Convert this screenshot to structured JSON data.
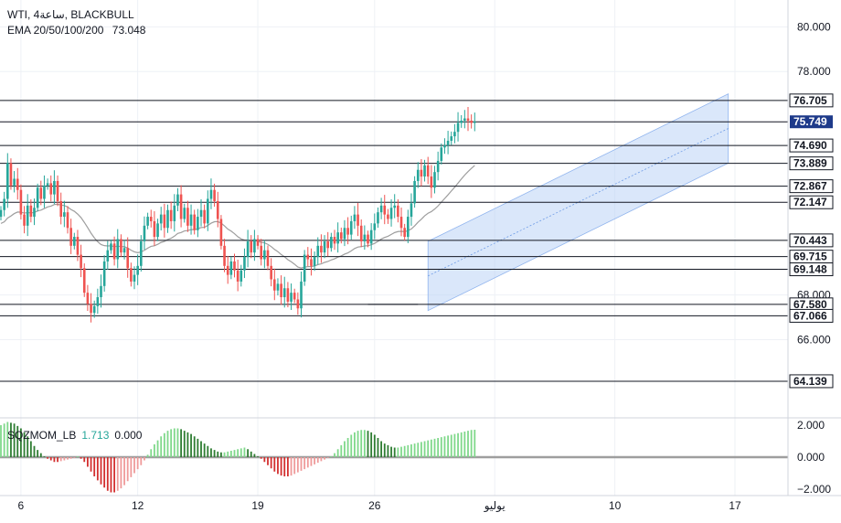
{
  "header": {
    "symbol": "WTI, 4ساعة, BLACKBULL",
    "ema_label": "EMA 20/50/100/200",
    "ema_value": "73.048"
  },
  "oscillator": {
    "label": "SQZMOM_LB",
    "value1": "1.713",
    "value2": "0.000",
    "ticks": [
      {
        "value": 2,
        "label": "2.000"
      },
      {
        "value": 0,
        "label": "0.000"
      },
      {
        "value": -2,
        "label": "−2.000"
      }
    ]
  },
  "colors": {
    "bull": "#26a69a",
    "bear": "#ef5350",
    "channel": "#bbd3f5",
    "ema": "#9e9e9e",
    "current_price_bg": "#1e3a8a",
    "grid": "#eef1f6"
  },
  "chart_data": {
    "type": "candlestick",
    "ylim": [
      62.5,
      81.2
    ],
    "y_ticks": [
      {
        "value": 80,
        "label": "80.000"
      },
      {
        "value": 78,
        "label": "78.000"
      },
      {
        "value": 68,
        "label": "68.000"
      },
      {
        "value": 66,
        "label": "66.000"
      }
    ],
    "x_ticks": [
      {
        "index": 6,
        "label": "6"
      },
      {
        "index": 41,
        "label": "12"
      },
      {
        "index": 77,
        "label": "19"
      },
      {
        "index": 112,
        "label": "26"
      },
      {
        "index": 148,
        "label": "يوليو"
      },
      {
        "index": 184,
        "label": "10"
      },
      {
        "index": 220,
        "label": "17"
      }
    ],
    "levels": [
      {
        "value": 76.705,
        "label": "76.705"
      },
      {
        "value": 74.69,
        "label": "74.690"
      },
      {
        "value": 73.889,
        "label": "73.889"
      },
      {
        "value": 72.867,
        "label": "72.867"
      },
      {
        "value": 72.147,
        "label": "72.147"
      },
      {
        "value": 70.443,
        "label": "70.443"
      },
      {
        "value": 69.715,
        "label": "69.715"
      },
      {
        "value": 69.148,
        "label": "69.148"
      },
      {
        "value": 67.58,
        "label": "67.580"
      },
      {
        "value": 67.066,
        "label": "67.066"
      },
      {
        "value": 64.139,
        "label": "64.139"
      }
    ],
    "current_price": {
      "value": 75.749,
      "label": "75.749"
    },
    "channel": {
      "start_index": 128,
      "end_index": 218,
      "lower_start": 67.3,
      "lower_end": 73.9,
      "upper_start": 70.4,
      "upper_end": 77.0
    },
    "closes": [
      71.8,
      72.3,
      73.9,
      72.9,
      73.2,
      72.7,
      71.6,
      71.1,
      72.0,
      71.5,
      71.9,
      72.8,
      72.3,
      72.9,
      73.0,
      72.5,
      73.1,
      72.2,
      71.5,
      71.7,
      71.0,
      70.2,
      70.6,
      69.8,
      69.2,
      68.1,
      67.6,
      67.2,
      67.5,
      67.9,
      68.4,
      69.5,
      70.0,
      70.3,
      69.6,
      70.5,
      69.9,
      70.1,
      69.2,
      68.6,
      68.9,
      69.3,
      70.4,
      71.1,
      71.5,
      71.3,
      70.6,
      71.2,
      71.6,
      71.0,
      71.8,
      71.3,
      72.0,
      72.5,
      71.4,
      71.9,
      71.1,
      71.6,
      70.9,
      71.5,
      71.8,
      71.2,
      72.3,
      72.7,
      72.2,
      71.4,
      70.2,
      69.3,
      68.9,
      69.5,
      69.1,
      68.6,
      69.1,
      69.7,
      70.4,
      69.9,
      70.5,
      70.2,
      69.6,
      70.0,
      69.3,
      68.7,
      68.2,
      68.5,
      67.9,
      68.3,
      67.7,
      68.1,
      67.8,
      67.4,
      68.6,
      69.8,
      69.6,
      69.3,
      69.7,
      70.2,
      69.9,
      70.4,
      70.1,
      70.6,
      70.3,
      70.8,
      70.5,
      71.0,
      70.7,
      71.3,
      71.6,
      71.1,
      70.4,
      70.7,
      70.3,
      70.9,
      71.2,
      71.7,
      72.0,
      71.6,
      71.4,
      71.9,
      72.0,
      71.5,
      71.0,
      70.6,
      71.5,
      72.1,
      73.1,
      73.6,
      73.3,
      73.8,
      73.3,
      72.8,
      73.5,
      74.0,
      74.6,
      74.7,
      74.9,
      75.1,
      75.3,
      75.7,
      75.8,
      75.9,
      75.8,
      75.7,
      75.75
    ],
    "oscillator": [
      2.0,
      2.1,
      2.2,
      2.15,
      2.1,
      1.95,
      1.8,
      1.55,
      1.3,
      1.0,
      0.7,
      0.45,
      0.25,
      0.05,
      -0.1,
      -0.2,
      -0.3,
      -0.3,
      -0.25,
      -0.2,
      -0.15,
      -0.1,
      -0.05,
      0.05,
      -0.1,
      -0.3,
      -0.6,
      -0.9,
      -1.2,
      -1.45,
      -1.7,
      -1.9,
      -2.1,
      -2.2,
      -2.2,
      -2.1,
      -1.95,
      -1.75,
      -1.5,
      -1.25,
      -1.0,
      -0.75,
      -0.5,
      -0.2,
      0.15,
      0.5,
      0.8,
      1.05,
      1.3,
      1.5,
      1.65,
      1.75,
      1.8,
      1.8,
      1.75,
      1.65,
      1.55,
      1.45,
      1.3,
      1.15,
      1.0,
      0.85,
      0.7,
      0.55,
      0.45,
      0.35,
      0.3,
      0.3,
      0.35,
      0.4,
      0.45,
      0.5,
      0.55,
      0.6,
      0.5,
      0.35,
      0.2,
      0.05,
      -0.1,
      -0.3,
      -0.5,
      -0.7,
      -0.9,
      -1.05,
      -1.15,
      -1.2,
      -1.2,
      -1.15,
      -1.05,
      -0.95,
      -0.85,
      -0.75,
      -0.65,
      -0.55,
      -0.45,
      -0.35,
      -0.25,
      -0.15,
      -0.05,
      0.05,
      0.25,
      0.5,
      0.75,
      1.0,
      1.2,
      1.4,
      1.55,
      1.65,
      1.7,
      1.7,
      1.65,
      1.55,
      1.4,
      1.2,
      1.0,
      0.85,
      0.75,
      0.65,
      0.6,
      0.6,
      0.65,
      0.7,
      0.75,
      0.8,
      0.85,
      0.9,
      0.95,
      1.0,
      1.05,
      1.1,
      1.15,
      1.2,
      1.25,
      1.3,
      1.35,
      1.4,
      1.45,
      1.5,
      1.55,
      1.6,
      1.65,
      1.7,
      1.713
    ]
  }
}
